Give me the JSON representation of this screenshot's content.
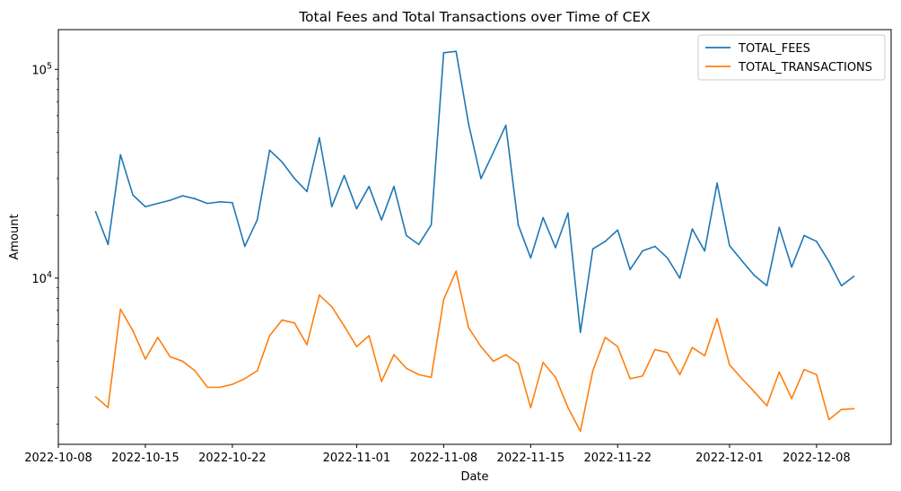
{
  "chart_data": {
    "type": "line",
    "title": "Total Fees and Total Transactions over Time of CEX",
    "xlabel": "Date",
    "ylabel": "Amount",
    "yscale": "log",
    "ylim": [
      1600,
      155000
    ],
    "xlim": [
      "2022-10-08",
      "2022-12-14"
    ],
    "x_ticks": [
      "2022-10-08",
      "2022-10-15",
      "2022-10-22",
      "2022-11-01",
      "2022-11-08",
      "2022-11-15",
      "2022-11-22",
      "2022-12-01",
      "2022-12-08"
    ],
    "y_ticks": [
      {
        "value": 10000,
        "base": "10",
        "exp": "4"
      },
      {
        "value": 100000,
        "base": "10",
        "exp": "5"
      }
    ],
    "grid": false,
    "legend_position": "top-right",
    "x": [
      "2022-10-11",
      "2022-10-12",
      "2022-10-13",
      "2022-10-14",
      "2022-10-15",
      "2022-10-16",
      "2022-10-17",
      "2022-10-18",
      "2022-10-19",
      "2022-10-20",
      "2022-10-21",
      "2022-10-22",
      "2022-10-23",
      "2022-10-24",
      "2022-10-25",
      "2022-10-26",
      "2022-10-27",
      "2022-10-28",
      "2022-10-29",
      "2022-10-30",
      "2022-10-31",
      "2022-11-01",
      "2022-11-02",
      "2022-11-03",
      "2022-11-04",
      "2022-11-05",
      "2022-11-06",
      "2022-11-07",
      "2022-11-08",
      "2022-11-09",
      "2022-11-10",
      "2022-11-11",
      "2022-11-12",
      "2022-11-13",
      "2022-11-14",
      "2022-11-15",
      "2022-11-16",
      "2022-11-17",
      "2022-11-18",
      "2022-11-19",
      "2022-11-20",
      "2022-11-21",
      "2022-11-22",
      "2022-11-23",
      "2022-11-24",
      "2022-11-25",
      "2022-11-26",
      "2022-11-27",
      "2022-11-28",
      "2022-11-29",
      "2022-11-30",
      "2022-12-01",
      "2022-12-02",
      "2022-12-03",
      "2022-12-04",
      "2022-12-05",
      "2022-12-06",
      "2022-12-07",
      "2022-12-08",
      "2022-12-09",
      "2022-12-10",
      "2022-12-11"
    ],
    "series": [
      {
        "name": "TOTAL_FEES",
        "color": "#1f77b4",
        "values": [
          20800,
          14500,
          39000,
          25000,
          22000,
          22800,
          23600,
          24800,
          24000,
          22800,
          23200,
          23000,
          14200,
          19000,
          41000,
          36000,
          30000,
          26000,
          47000,
          22000,
          31000,
          21500,
          27500,
          19000,
          27500,
          16000,
          14500,
          18000,
          120000,
          122000,
          55000,
          30000,
          40000,
          54000,
          18000,
          12500,
          19500,
          14000,
          20500,
          5500,
          13800,
          15000,
          17000,
          11000,
          13500,
          14200,
          12500,
          10000,
          17200,
          13500,
          28500,
          14300,
          12100,
          10300,
          9200,
          17500,
          11300,
          16000,
          15000,
          12000,
          9200,
          10200
        ]
      },
      {
        "name": "TOTAL_TRANSACTIONS",
        "color": "#ff7f0e",
        "values": [
          2700,
          2400,
          7100,
          5600,
          4100,
          5200,
          4200,
          4000,
          3600,
          3000,
          3000,
          3100,
          3300,
          3600,
          5300,
          6300,
          6100,
          4800,
          8300,
          7300,
          5900,
          4700,
          5300,
          3200,
          4300,
          3700,
          3450,
          3350,
          7900,
          10800,
          5800,
          4700,
          4000,
          4300,
          3900,
          2400,
          3950,
          3350,
          2400,
          1850,
          3600,
          5200,
          4700,
          3300,
          3400,
          4550,
          4400,
          3450,
          4650,
          4250,
          6400,
          3850,
          3300,
          2850,
          2450,
          3550,
          2650,
          3650,
          3450,
          2100,
          2350,
          2370
        ]
      }
    ]
  }
}
